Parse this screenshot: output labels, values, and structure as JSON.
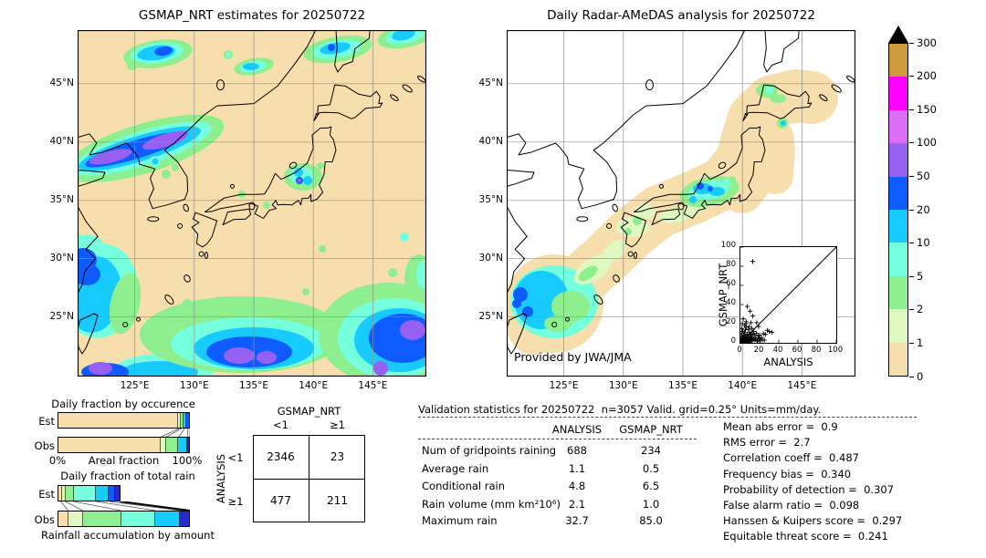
{
  "left_map": {
    "title": "GSMAP_NRT estimates for 20250722"
  },
  "right_map": {
    "title": "Daily Radar-AMeDAS analysis for 20250722",
    "credit": "Provided by JWA/JMA"
  },
  "axes": {
    "lat_ticks": [
      "45°N",
      "40°N",
      "35°N",
      "30°N",
      "25°N"
    ],
    "lon_ticks": [
      "125°E",
      "130°E",
      "135°E",
      "140°E",
      "145°E"
    ]
  },
  "occurrence_chart": {
    "title": "Daily fraction by occurence",
    "row_labels": [
      "Est",
      "Obs"
    ],
    "x_left": "0%",
    "x_label": "Areal fraction",
    "x_right": "100%"
  },
  "totalrain_chart": {
    "title": "Daily fraction of total rain",
    "row_labels": [
      "Est",
      "Obs"
    ],
    "x_label": "Rainfall accumulation by amount"
  },
  "contingency": {
    "col_header": "GSMAP_NRT",
    "row_header": "ANALYSIS",
    "col_labels": [
      "<1",
      "≥1"
    ],
    "row_labels": [
      "<1",
      "≥1"
    ]
  },
  "validation": {
    "title": "Validation statistics for 20250722  n=3057 Valid. grid=0.25° Units=mm/day.",
    "columns": [
      "ANALYSIS",
      "GSMAP_NRT"
    ]
  },
  "inset": {
    "xlabel": "ANALYSIS",
    "ylabel": "GSMAP_NRT"
  },
  "chart_data": {
    "colorbar_scale": {
      "type": "heatmap-scale",
      "units": "mm/day",
      "levels": [
        0,
        1,
        2,
        5,
        10,
        20,
        50,
        100,
        150,
        200,
        300
      ],
      "colors": [
        "#F7DFAD",
        "#DFF8C0",
        "#8DEF8D",
        "#75FFDC",
        "#17CBFF",
        "#0E5CFF",
        "#9661F2",
        "#DB6EF5",
        "#FF00FF",
        "#CE9A3C"
      ],
      "overflow_color": "#000000"
    },
    "occurrence_bars": {
      "type": "bar",
      "orientation": "horizontal",
      "units": "percent of area",
      "name": "occurrence",
      "rows": [
        {
          "name": "Est",
          "segments": [
            [
              "#F7DFAD",
              91.7
            ],
            [
              "#DFF8C0",
              1.8
            ],
            [
              "#8DEF8D",
              2.4
            ],
            [
              "#17CBFF",
              2.3
            ],
            [
              "#0E5CFF",
              1.8
            ]
          ]
        },
        {
          "name": "Obs",
          "segments": [
            [
              "#F7DFAD",
              78.5
            ],
            [
              "#DFF8C0",
              4.0
            ],
            [
              "#8DEF8D",
              9.2
            ],
            [
              "#17CBFF",
              6.8
            ],
            [
              "#2828CC",
              1.5
            ]
          ]
        }
      ],
      "connectors": [
        [
          91.7,
          78.5,
          0
        ],
        [
          93.5,
          82.5,
          0
        ],
        [
          95.9,
          91.7,
          0
        ],
        [
          98.2,
          98.5,
          0
        ],
        [
          100,
          100,
          0
        ]
      ]
    },
    "totalrain_bars": {
      "type": "bar",
      "orientation": "horizontal",
      "units": "percent of total rain",
      "name": "totalrain",
      "rows": [
        {
          "name": "Est",
          "segments": [
            [
              "#F7DFAD",
              2.5
            ],
            [
              "#DFF8C0",
              3.5
            ],
            [
              "#8DEF8D",
              6.0
            ],
            [
              "#75FFDC",
              17.0
            ],
            [
              "#17CBFF",
              10.0
            ],
            [
              "#0E5CFF",
              5.0
            ],
            [
              "#2828CC",
              3.5
            ]
          ]
        },
        {
          "name": "Obs",
          "segments": [
            [
              "#F7DFAD",
              8.0
            ],
            [
              "#DFF8C0",
              11.0
            ],
            [
              "#8DEF8D",
              29.0
            ],
            [
              "#75FFDC",
              26.0
            ],
            [
              "#17CBFF",
              19.0
            ],
            [
              "#2828CC",
              7.0
            ]
          ]
        }
      ],
      "connectors": [
        [
          2.5,
          8,
          0
        ],
        [
          6,
          19,
          0
        ],
        [
          12,
          48,
          0
        ],
        [
          29,
          74,
          0
        ],
        [
          39,
          93,
          0
        ],
        [
          47.5,
          100,
          1
        ]
      ]
    },
    "contingency_table": {
      "type": "table",
      "col_header": "GSMAP_NRT",
      "row_header": "ANALYSIS",
      "col_labels": [
        "<1",
        "≥1"
      ],
      "row_labels": [
        "<1",
        "≥1"
      ],
      "values": [
        [
          "2346",
          "23"
        ],
        [
          "477",
          "211"
        ]
      ]
    },
    "validation_table": {
      "type": "table",
      "columns": [
        "ANALYSIS",
        "GSMAP_NRT"
      ],
      "rows": [
        [
          "Num of gridpoints raining",
          "688",
          "234"
        ],
        [
          "Average rain",
          "1.1",
          "0.5"
        ],
        [
          "Conditional rain",
          "4.8",
          "6.5"
        ],
        [
          "Rain volume (mm km²10⁶)",
          "2.1",
          "1.0"
        ],
        [
          "Maximum rain",
          "32.7",
          "85.0"
        ]
      ]
    },
    "validation_scores": [
      {
        "label": "Mean abs error",
        "value": "0.9"
      },
      {
        "label": "RMS error",
        "value": "2.7"
      },
      {
        "label": "Correlation coeff",
        "value": "0.487"
      },
      {
        "label": "Frequency bias",
        "value": "0.340"
      },
      {
        "label": "Probability of detection",
        "value": "0.307"
      },
      {
        "label": "False alarm ratio",
        "value": "0.098"
      },
      {
        "label": "Hanssen & Kuipers score",
        "value": "0.297"
      },
      {
        "label": "Equitable threat score",
        "value": "0.241"
      }
    ],
    "inset_scatter": {
      "type": "scatter",
      "xlabel": "ANALYSIS",
      "ylabel": "GSMAP_NRT",
      "xlim": [
        0,
        100
      ],
      "ylim": [
        0,
        100
      ],
      "ticks": [
        0,
        20,
        40,
        60,
        80,
        100
      ],
      "identity_line": true,
      "points": [
        [
          0.3,
          0.4
        ],
        [
          0.6,
          1.2
        ],
        [
          0.8,
          2.5
        ],
        [
          1,
          0.5
        ],
        [
          1.2,
          1.8
        ],
        [
          1.5,
          3.2
        ],
        [
          1.8,
          0.8
        ],
        [
          2,
          2
        ],
        [
          2.2,
          4.5
        ],
        [
          2.5,
          1.2
        ],
        [
          2.8,
          6
        ],
        [
          3,
          0.6
        ],
        [
          3,
          2.8
        ],
        [
          3.2,
          8
        ],
        [
          3.5,
          1.6
        ],
        [
          3.8,
          4
        ],
        [
          4,
          2.4
        ],
        [
          4.2,
          10.5
        ],
        [
          4.5,
          0.9
        ],
        [
          4.8,
          5.5
        ],
        [
          5,
          3
        ],
        [
          5.2,
          13.5
        ],
        [
          5.5,
          1.4
        ],
        [
          5.8,
          7
        ],
        [
          6,
          2.2
        ],
        [
          6.2,
          16.5
        ],
        [
          6.5,
          4.8
        ],
        [
          6.8,
          0.7
        ],
        [
          7,
          9
        ],
        [
          7.2,
          38
        ],
        [
          7.5,
          2.6
        ],
        [
          7.8,
          5.2
        ],
        [
          8,
          1.1
        ],
        [
          8.2,
          14
        ],
        [
          8.5,
          3.4
        ],
        [
          8.8,
          7.8
        ],
        [
          9,
          1.9
        ],
        [
          9.2,
          17
        ],
        [
          9.5,
          4.2
        ],
        [
          9.8,
          11
        ],
        [
          10,
          2.3
        ],
        [
          10.2,
          33
        ],
        [
          10.5,
          6.4
        ],
        [
          10.8,
          1.5
        ],
        [
          11,
          21
        ],
        [
          11.2,
          8.6
        ],
        [
          11.5,
          3.8
        ],
        [
          11.8,
          5.8
        ],
        [
          12,
          15
        ],
        [
          12.2,
          2.1
        ],
        [
          12.5,
          9.4
        ],
        [
          12.8,
          85
        ],
        [
          13,
          28
        ],
        [
          13.5,
          4.6
        ],
        [
          14,
          12
        ],
        [
          14.5,
          2.9
        ],
        [
          15,
          8
        ],
        [
          15.5,
          5
        ],
        [
          16,
          3.6
        ],
        [
          16.5,
          10
        ],
        [
          17,
          21
        ],
        [
          17.5,
          1.7
        ],
        [
          18,
          2.4
        ],
        [
          18.5,
          6.8
        ],
        [
          19,
          17
        ],
        [
          19.5,
          4.1
        ],
        [
          20,
          8.2
        ],
        [
          21,
          2.7
        ],
        [
          22,
          5.4
        ],
        [
          23,
          3.1
        ],
        [
          24,
          9.6
        ],
        [
          25,
          2.8
        ],
        [
          26,
          8.8
        ],
        [
          28,
          13
        ],
        [
          30,
          12
        ],
        [
          33,
          11
        ],
        [
          2,
          20
        ],
        [
          3,
          25
        ],
        [
          6,
          22
        ],
        [
          1.4,
          15
        ],
        [
          0.9,
          7
        ],
        [
          1.7,
          10
        ],
        [
          2.4,
          12
        ],
        [
          4.4,
          18
        ],
        [
          5.6,
          20
        ]
      ]
    },
    "maps": [
      {
        "type": "map",
        "title": "GSMAP_NRT estimates for 20250722",
        "units": "mm/day",
        "notable_regions": [
          "heavy band 20-100+ over Korea near 39-41N",
          "cells 10-50 north of 47N",
          "cluster 10-100 near Kanto 35-36N",
          "widespread 5-150 south of 27N including Taiwan and 143-149E"
        ]
      },
      {
        "type": "map",
        "title": "Daily Radar-AMeDAS analysis for 20250722",
        "units": "mm/day",
        "notable_regions": [
          "radar coverage swath 0-1 along Japan archipelago",
          "cells 2-20 central Honshu 35-36.5N",
          "light rain 1-5 Kyushu and Hokkaido",
          "large area 2-50 around 122-127E 23-27N"
        ]
      }
    ]
  }
}
